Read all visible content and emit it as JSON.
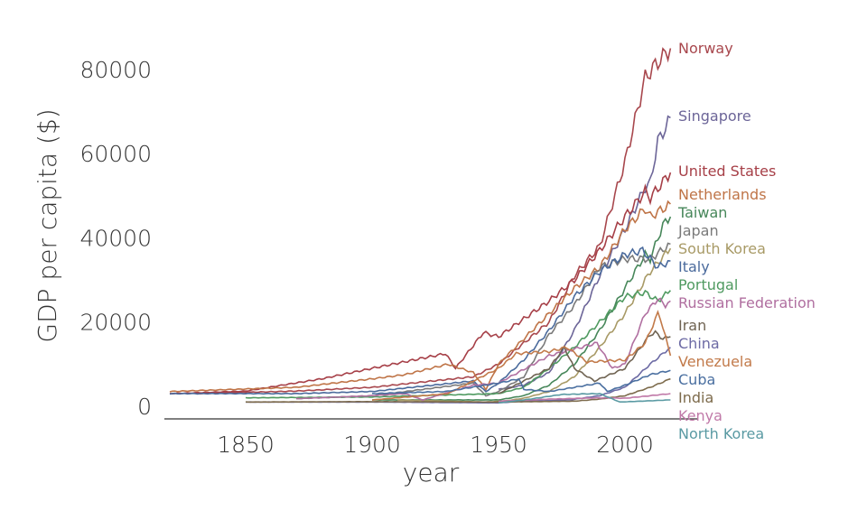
{
  "chart_data": {
    "type": "line",
    "title": "",
    "xlabel": "year",
    "ylabel": "GDP per capita ($)",
    "xlim": [
      1815,
      2025
    ],
    "ylim": [
      0,
      85000
    ],
    "x_ticks": [
      1850,
      1900,
      1950,
      2000
    ],
    "y_ticks": [
      0,
      20000,
      40000,
      60000,
      80000
    ],
    "grid": false,
    "legend": "direct labels at line ends (right)",
    "series": [
      {
        "name": "Norway",
        "color": "#a8474d",
        "points": [
          [
            1830,
            3000
          ],
          [
            1870,
            3600
          ],
          [
            1900,
            4500
          ],
          [
            1940,
            7000
          ],
          [
            1950,
            10000
          ],
          [
            1970,
            20000
          ],
          [
            1980,
            31000
          ],
          [
            1990,
            38000
          ],
          [
            2000,
            58000
          ],
          [
            2008,
            78000
          ],
          [
            2012,
            81000
          ],
          [
            2018,
            85000
          ]
        ]
      },
      {
        "name": "Singapore",
        "color": "#6c6598",
        "points": [
          [
            1950,
            4000
          ],
          [
            1960,
            5000
          ],
          [
            1970,
            8000
          ],
          [
            1980,
            18000
          ],
          [
            1990,
            31000
          ],
          [
            2000,
            42000
          ],
          [
            2008,
            52000
          ],
          [
            2010,
            53000
          ],
          [
            2013,
            63000
          ],
          [
            2016,
            66000
          ],
          [
            2018,
            68500
          ]
        ]
      },
      {
        "name": "United States",
        "color": "#a63f47",
        "points": [
          [
            1820,
            3000
          ],
          [
            1850,
            3600
          ],
          [
            1880,
            6500
          ],
          [
            1900,
            9000
          ],
          [
            1929,
            12500
          ],
          [
            1933,
            9000
          ],
          [
            1944,
            17500
          ],
          [
            1950,
            16500
          ],
          [
            1970,
            25000
          ],
          [
            1980,
            30000
          ],
          [
            1990,
            37000
          ],
          [
            2000,
            45000
          ],
          [
            2008,
            51000
          ],
          [
            2010,
            49500
          ],
          [
            2018,
            55500
          ]
        ]
      },
      {
        "name": "Netherlands",
        "color": "#bf7447",
        "points": [
          [
            1820,
            3500
          ],
          [
            1870,
            4500
          ],
          [
            1900,
            6500
          ],
          [
            1913,
            7500
          ],
          [
            1930,
            10000
          ],
          [
            1940,
            8000
          ],
          [
            1945,
            4000
          ],
          [
            1950,
            10000
          ],
          [
            1970,
            22000
          ],
          [
            1980,
            28000
          ],
          [
            1990,
            33000
          ],
          [
            2000,
            42000
          ],
          [
            2008,
            47000
          ],
          [
            2010,
            45000
          ],
          [
            2018,
            48000
          ]
        ]
      },
      {
        "name": "Taiwan",
        "color": "#47875a",
        "points": [
          [
            1900,
            1500
          ],
          [
            1950,
            1500
          ],
          [
            1960,
            2500
          ],
          [
            1970,
            5000
          ],
          [
            1980,
            10000
          ],
          [
            1990,
            18000
          ],
          [
            2000,
            28000
          ],
          [
            2008,
            36000
          ],
          [
            2010,
            35000
          ],
          [
            2015,
            43000
          ],
          [
            2018,
            45000
          ]
        ]
      },
      {
        "name": "Japan",
        "color": "#7a7a7a",
        "points": [
          [
            1870,
            1800
          ],
          [
            1900,
            2500
          ],
          [
            1940,
            5500
          ],
          [
            1945,
            2500
          ],
          [
            1950,
            3500
          ],
          [
            1960,
            7000
          ],
          [
            1970,
            17000
          ],
          [
            1980,
            24000
          ],
          [
            1990,
            33000
          ],
          [
            2000,
            35000
          ],
          [
            2010,
            35000
          ],
          [
            2018,
            38500
          ]
        ]
      },
      {
        "name": "South Korea",
        "color": "#a89a66",
        "points": [
          [
            1910,
            1500
          ],
          [
            1945,
            1000
          ],
          [
            1953,
            1300
          ],
          [
            1960,
            1900
          ],
          [
            1970,
            3500
          ],
          [
            1980,
            7000
          ],
          [
            1990,
            14000
          ],
          [
            2000,
            22000
          ],
          [
            2010,
            32000
          ],
          [
            2018,
            37500
          ]
        ]
      },
      {
        "name": "Italy",
        "color": "#4a6a9c",
        "points": [
          [
            1820,
            3000
          ],
          [
            1870,
            3000
          ],
          [
            1900,
            3500
          ],
          [
            1940,
            6000
          ],
          [
            1945,
            3500
          ],
          [
            1950,
            5500
          ],
          [
            1960,
            11000
          ],
          [
            1970,
            18000
          ],
          [
            1980,
            26000
          ],
          [
            1990,
            32000
          ],
          [
            2000,
            36000
          ],
          [
            2007,
            37000
          ],
          [
            2013,
            33000
          ],
          [
            2018,
            34500
          ]
        ]
      },
      {
        "name": "Portugal",
        "color": "#4f9a60",
        "points": [
          [
            1850,
            2000
          ],
          [
            1900,
            2200
          ],
          [
            1950,
            3000
          ],
          [
            1960,
            4500
          ],
          [
            1970,
            9000
          ],
          [
            1980,
            14000
          ],
          [
            1990,
            20000
          ],
          [
            2000,
            26000
          ],
          [
            2008,
            27000
          ],
          [
            2013,
            25000
          ],
          [
            2018,
            27500
          ]
        ]
      },
      {
        "name": "Russian Federation",
        "color": "#b06fa0",
        "points": [
          [
            1870,
            1800
          ],
          [
            1900,
            2500
          ],
          [
            1913,
            3000
          ],
          [
            1920,
            1500
          ],
          [
            1940,
            5000
          ],
          [
            1950,
            5500
          ],
          [
            1970,
            12000
          ],
          [
            1989,
            15000
          ],
          [
            1995,
            9000
          ],
          [
            2000,
            10000
          ],
          [
            2008,
            22000
          ],
          [
            2013,
            25500
          ],
          [
            2016,
            24000
          ],
          [
            2018,
            25000
          ]
        ]
      },
      {
        "name": "Iran",
        "color": "#6f6352",
        "points": [
          [
            1950,
            3000
          ],
          [
            1970,
            9000
          ],
          [
            1976,
            14000
          ],
          [
            1980,
            9000
          ],
          [
            1988,
            6000
          ],
          [
            2000,
            9000
          ],
          [
            2010,
            17000
          ],
          [
            2012,
            17500
          ],
          [
            2015,
            16000
          ],
          [
            2018,
            16500
          ]
        ]
      },
      {
        "name": "China",
        "color": "#6c6aa4",
        "points": [
          [
            1850,
            1000
          ],
          [
            1900,
            1000
          ],
          [
            1950,
            800
          ],
          [
            1960,
            1200
          ],
          [
            1978,
            1500
          ],
          [
            1990,
            2500
          ],
          [
            2000,
            4500
          ],
          [
            2010,
            10000
          ],
          [
            2018,
            14000
          ]
        ]
      },
      {
        "name": "Venezuela",
        "color": "#c27a4a",
        "points": [
          [
            1900,
            1500
          ],
          [
            1930,
            3000
          ],
          [
            1950,
            9000
          ],
          [
            1957,
            12500
          ],
          [
            1970,
            13000
          ],
          [
            1977,
            14000
          ],
          [
            1985,
            10500
          ],
          [
            2000,
            11000
          ],
          [
            2008,
            15000
          ],
          [
            2013,
            22000
          ],
          [
            2014,
            21000
          ],
          [
            2018,
            12000
          ]
        ]
      },
      {
        "name": "Cuba",
        "color": "#4a6fa0",
        "points": [
          [
            1900,
            3000
          ],
          [
            1929,
            3500
          ],
          [
            1950,
            5500
          ],
          [
            1958,
            6500
          ],
          [
            1960,
            4000
          ],
          [
            1970,
            3500
          ],
          [
            1990,
            5500
          ],
          [
            1993,
            3500
          ],
          [
            2000,
            5000
          ],
          [
            2010,
            7500
          ],
          [
            2018,
            8500
          ]
        ]
      },
      {
        "name": "India",
        "color": "#7d6b4c",
        "points": [
          [
            1850,
            1000
          ],
          [
            1900,
            1100
          ],
          [
            1950,
            1000
          ],
          [
            1980,
            1200
          ],
          [
            1990,
            1700
          ],
          [
            2000,
            2500
          ],
          [
            2010,
            4500
          ],
          [
            2018,
            6500
          ]
        ]
      },
      {
        "name": "Kenya",
        "color": "#c079a8",
        "points": [
          [
            1950,
            1200
          ],
          [
            1970,
            1700
          ],
          [
            1990,
            2000
          ],
          [
            2000,
            1900
          ],
          [
            2018,
            3000
          ]
        ]
      },
      {
        "name": "North Korea",
        "color": "#5a9aa3",
        "points": [
          [
            1950,
            800
          ],
          [
            1960,
            1500
          ],
          [
            1975,
            2800
          ],
          [
            1990,
            3000
          ],
          [
            1998,
            1000
          ],
          [
            2018,
            1500
          ]
        ]
      }
    ]
  }
}
